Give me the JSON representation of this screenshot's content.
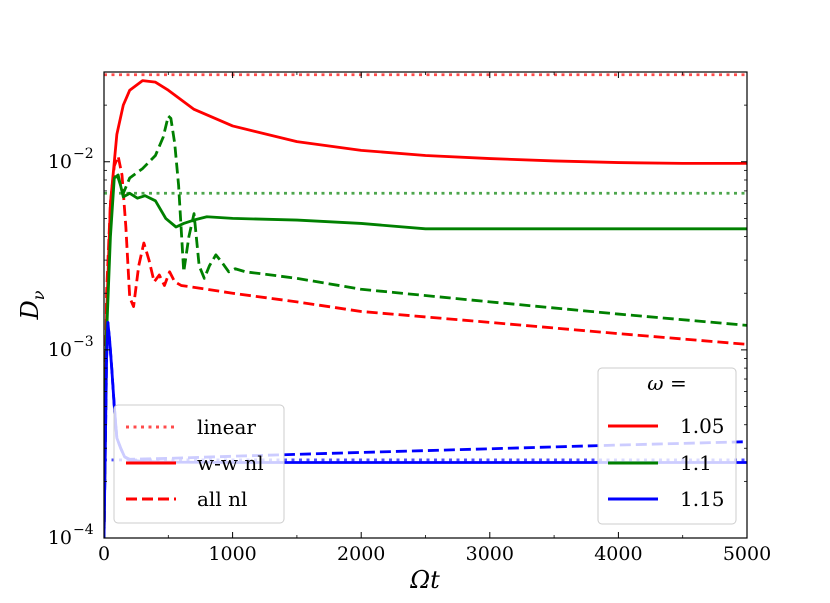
{
  "chart_data": {
    "type": "line",
    "xlabel": "Ωt",
    "ylabel": "D_ν",
    "ylabel_main": "D",
    "ylabel_sub": "ν",
    "xlim": [
      0,
      5000
    ],
    "ylim": [
      0.0001,
      0.03
    ],
    "yscale": "log",
    "x_ticks": [
      0,
      1000,
      2000,
      3000,
      4000,
      5000
    ],
    "x_tick_labels": [
      "0",
      "1000",
      "2000",
      "3000",
      "4000",
      "5000"
    ],
    "y_ticks": [
      0.0001,
      0.001,
      0.01
    ],
    "y_tick_labels": [
      {
        "base": "10",
        "exp": "−4"
      },
      {
        "base": "10",
        "exp": "−3"
      },
      {
        "base": "10",
        "exp": "−2"
      }
    ],
    "colors": {
      "1.05": "#ff0000",
      "1.1": "#008000",
      "1.15": "#0000ff"
    },
    "legend_styles": {
      "title": "",
      "entries": [
        {
          "label": "linear",
          "dash": "dotted",
          "color": "#ff0000"
        },
        {
          "label": "w-w nl",
          "dash": "solid",
          "color": "#ff0000"
        },
        {
          "label": "all nl",
          "dash": "dashed",
          "color": "#ff0000"
        }
      ],
      "placement": "lower-left"
    },
    "legend_omega": {
      "title": "ω =",
      "entries": [
        {
          "label": "1.05",
          "color": "#ff0000"
        },
        {
          "label": "1.1",
          "color": "#008000"
        },
        {
          "label": "1.15",
          "color": "#0000ff"
        }
      ],
      "placement": "lower-right"
    },
    "series": [
      {
        "name": "linear ω=1.05",
        "omega": "1.05",
        "style": "dotted",
        "color": "#ff0000",
        "alpha": 0.7,
        "x": [
          0,
          5000
        ],
        "y": [
          0.029,
          0.029
        ]
      },
      {
        "name": "linear ω=1.1",
        "omega": "1.1",
        "style": "dotted",
        "color": "#008000",
        "alpha": 0.7,
        "x": [
          0,
          5000
        ],
        "y": [
          0.0068,
          0.0068
        ]
      },
      {
        "name": "linear ω=1.15",
        "omega": "1.15",
        "style": "dotted",
        "color": "#0000ff",
        "alpha": 0.7,
        "x": [
          0,
          5000
        ],
        "y": [
          0.00026,
          0.00026
        ]
      },
      {
        "name": "w-w nl ω=1.05",
        "omega": "1.05",
        "style": "solid",
        "color": "#ff0000",
        "alpha": 1,
        "x": [
          0,
          20,
          50,
          100,
          150,
          200,
          300,
          400,
          500,
          700,
          1000,
          1500,
          2000,
          2500,
          3000,
          3500,
          4000,
          4500,
          5000
        ],
        "y": [
          0.0001,
          0.0015,
          0.006,
          0.014,
          0.02,
          0.024,
          0.027,
          0.0265,
          0.024,
          0.019,
          0.0155,
          0.0128,
          0.0115,
          0.0108,
          0.0104,
          0.0101,
          0.0099,
          0.0098,
          0.0098
        ]
      },
      {
        "name": "w-w nl ω=1.1",
        "omega": "1.1",
        "style": "solid",
        "color": "#008000",
        "alpha": 1,
        "x": [
          0,
          20,
          50,
          80,
          110,
          150,
          200,
          260,
          320,
          400,
          480,
          560,
          620,
          700,
          800,
          1000,
          1500,
          2000,
          2500,
          3000,
          4000,
          5000
        ],
        "y": [
          0.0001,
          0.0012,
          0.004,
          0.0082,
          0.0085,
          0.0065,
          0.0068,
          0.0064,
          0.0066,
          0.0062,
          0.005,
          0.0045,
          0.0047,
          0.0049,
          0.0051,
          0.005,
          0.0049,
          0.0047,
          0.0044,
          0.0044,
          0.0044,
          0.0044
        ]
      },
      {
        "name": "w-w nl ω=1.15",
        "omega": "1.15",
        "style": "solid",
        "color": "#0000ff",
        "alpha": 1,
        "x": [
          0,
          10,
          20,
          30,
          45,
          60,
          80,
          100,
          130,
          160,
          200,
          300,
          500,
          1000,
          2000,
          3000,
          4000,
          5000
        ],
        "y": [
          0.0001,
          0.0003,
          0.0009,
          0.0014,
          0.0011,
          0.0008,
          0.0005,
          0.00034,
          0.0003,
          0.00027,
          0.00026,
          0.000255,
          0.000253,
          0.000252,
          0.000252,
          0.000252,
          0.000252,
          0.000252
        ]
      },
      {
        "name": "all nl ω=1.05",
        "omega": "1.05",
        "style": "dashed",
        "color": "#ff0000",
        "alpha": 1,
        "x": [
          0,
          20,
          50,
          80,
          110,
          140,
          170,
          200,
          230,
          270,
          310,
          350,
          390,
          430,
          470,
          510,
          550,
          600,
          800,
          1000,
          1500,
          2000,
          3000,
          4000,
          5000
        ],
        "y": [
          0.0001,
          0.002,
          0.006,
          0.0095,
          0.0107,
          0.0085,
          0.0045,
          0.0019,
          0.0017,
          0.0028,
          0.0037,
          0.003,
          0.0023,
          0.0025,
          0.0022,
          0.0026,
          0.0023,
          0.0022,
          0.0021,
          0.002,
          0.0018,
          0.0016,
          0.0014,
          0.00122,
          0.00107
        ]
      },
      {
        "name": "all nl ω=1.1",
        "omega": "1.1",
        "style": "dashed",
        "color": "#008000",
        "alpha": 1,
        "x": [
          0,
          20,
          50,
          80,
          110,
          150,
          200,
          300,
          400,
          460,
          500,
          520,
          550,
          580,
          620,
          660,
          700,
          740,
          780,
          820,
          870,
          920,
          970,
          1020,
          1100,
          1300,
          1500,
          2000,
          3000,
          4000,
          5000
        ],
        "y": [
          0.0001,
          0.0015,
          0.005,
          0.0087,
          0.0082,
          0.0068,
          0.0082,
          0.0092,
          0.0108,
          0.0135,
          0.0175,
          0.017,
          0.0125,
          0.0075,
          0.0026,
          0.004,
          0.0053,
          0.0028,
          0.0024,
          0.0028,
          0.0032,
          0.0029,
          0.0026,
          0.0027,
          0.0026,
          0.0025,
          0.0024,
          0.0021,
          0.0018,
          0.00155,
          0.00135
        ]
      },
      {
        "name": "all nl ω=1.15",
        "omega": "1.15",
        "style": "dashed",
        "color": "#0000ff",
        "alpha": 1,
        "x": [
          0,
          10,
          20,
          30,
          45,
          60,
          80,
          100,
          130,
          160,
          200,
          500,
          1000,
          2000,
          3000,
          4000,
          5000
        ],
        "y": [
          0.0001,
          0.0003,
          0.0009,
          0.0014,
          0.0011,
          0.0008,
          0.0005,
          0.00034,
          0.0003,
          0.00027,
          0.000262,
          0.000265,
          0.000272,
          0.000285,
          0.000298,
          0.000312,
          0.000325
        ]
      }
    ]
  }
}
